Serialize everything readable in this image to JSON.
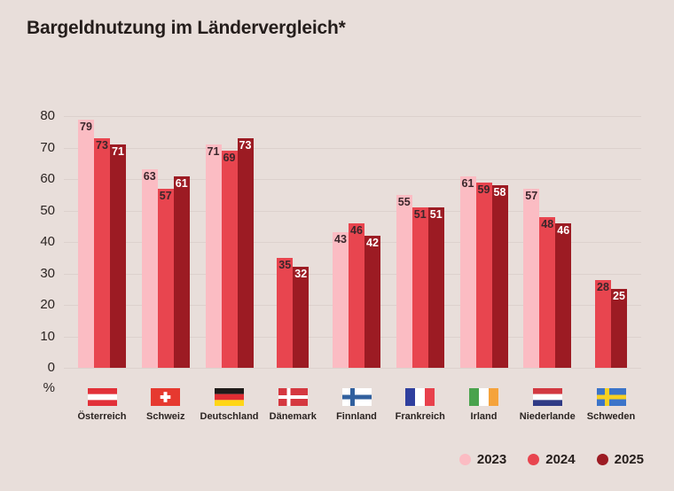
{
  "title": "Bargeldnutzung im Ländervergleich*",
  "y_axis": {
    "unit": "%",
    "ticks": [
      80,
      70,
      60,
      50,
      40,
      30,
      20,
      10,
      0
    ]
  },
  "legend": [
    {
      "label": "2023",
      "color": "#FBBCC3"
    },
    {
      "label": "2024",
      "color": "#E8454F"
    },
    {
      "label": "2025",
      "color": "#9C1B23"
    }
  ],
  "colors": {
    "background": "#E8DEDA",
    "gridline": "#DCD1CD",
    "label_dark": "#3A262B",
    "label_light": "#FFFFFF"
  },
  "chart_data": {
    "type": "bar",
    "title": "Bargeldnutzung im Ländervergleich*",
    "ylabel": "%",
    "ylim": [
      0,
      80
    ],
    "grid": true,
    "legend_position": "bottom-right",
    "categories": [
      "Österreich",
      "Schweiz",
      "Deutschland",
      "Dänemark",
      "Finnland",
      "Frankreich",
      "Irland",
      "Niederlande",
      "Schweden"
    ],
    "flags": [
      "austria",
      "switzerland",
      "germany",
      "denmark",
      "finland",
      "france",
      "ireland",
      "netherlands",
      "sweden"
    ],
    "series": [
      {
        "name": "2023",
        "color": "#FBBCC3",
        "values": [
          79,
          63,
          71,
          null,
          43,
          55,
          61,
          57,
          null
        ]
      },
      {
        "name": "2024",
        "color": "#E8454F",
        "values": [
          73,
          57,
          69,
          35,
          46,
          51,
          59,
          48,
          28
        ]
      },
      {
        "name": "2025",
        "color": "#9C1B23",
        "values": [
          71,
          61,
          73,
          32,
          42,
          51,
          58,
          46,
          25
        ]
      }
    ]
  }
}
